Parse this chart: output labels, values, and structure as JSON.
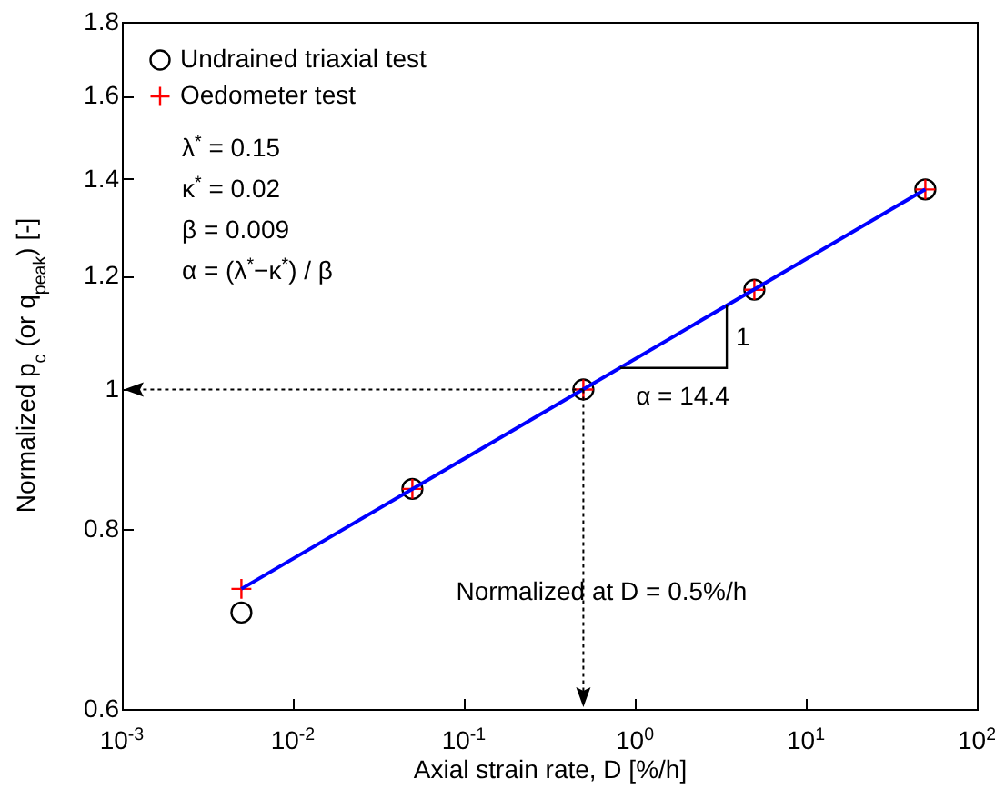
{
  "chart_data": {
    "type": "scatter",
    "xlabel": "Axial strain rate, D [%/h]",
    "ylabel": "Normalized p$_{c}$ (or q$_{peak}$)  [-]",
    "log": "xy",
    "grid": false,
    "legend": "top left",
    "xlim": [
      0.001,
      100
    ],
    "ylim": [
      0.6,
      1.8
    ],
    "xticks": [
      {
        "value": 0.001,
        "label": "10$^{-3}$"
      },
      {
        "value": 0.01,
        "label": "10$^{-2}$"
      },
      {
        "value": 0.1,
        "label": "10$^{-1}$"
      },
      {
        "value": 1,
        "label": "10$^{0}$"
      },
      {
        "value": 10,
        "label": "10$^{1}$"
      },
      {
        "value": 100,
        "label": "10$^{2}$"
      }
    ],
    "yticks": [
      0.6,
      0.8,
      1,
      1.2,
      1.4,
      1.6,
      1.8
    ],
    "x": [
      0.005,
      0.05,
      0.5,
      5,
      50
    ],
    "series": [
      {
        "name": "Undrained triaxial test",
        "marker": "circle",
        "color": "#000000",
        "values": [
          0.7,
          0.853,
          1.0,
          1.173,
          1.377
        ]
      },
      {
        "name": "Oedometer test",
        "marker": "cross",
        "color": "#ff0000",
        "values": [
          0.727,
          0.853,
          1.0,
          1.173,
          1.377
        ]
      },
      {
        "type": "line",
        "color": "#0000ff",
        "x": [
          0.005,
          50
        ],
        "values": [
          0.727,
          1.377
        ]
      }
    ],
    "annotations": [
      "λ$^{*}$ = 0.15",
      "κ$^{*}$ = 0.02",
      "β = 0.009",
      "α = (λ$^{*}$−κ$^{*}$) / β",
      {
        "text": "α = 14.4",
        "x": 0.82,
        "y": 1.035
      },
      {
        "text": "1",
        "x": 3.45,
        "y": 1.144
      }
    ],
    "ref_lines": [
      {
        "axis": "x",
        "value": 0.5,
        "label": "Normalized at D = 0.5%/h",
        "line_style": "dotted",
        "color": "#000000"
      },
      {
        "axis": "y",
        "value": 1,
        "line_style": "dotted",
        "color": "#000000"
      }
    ]
  }
}
